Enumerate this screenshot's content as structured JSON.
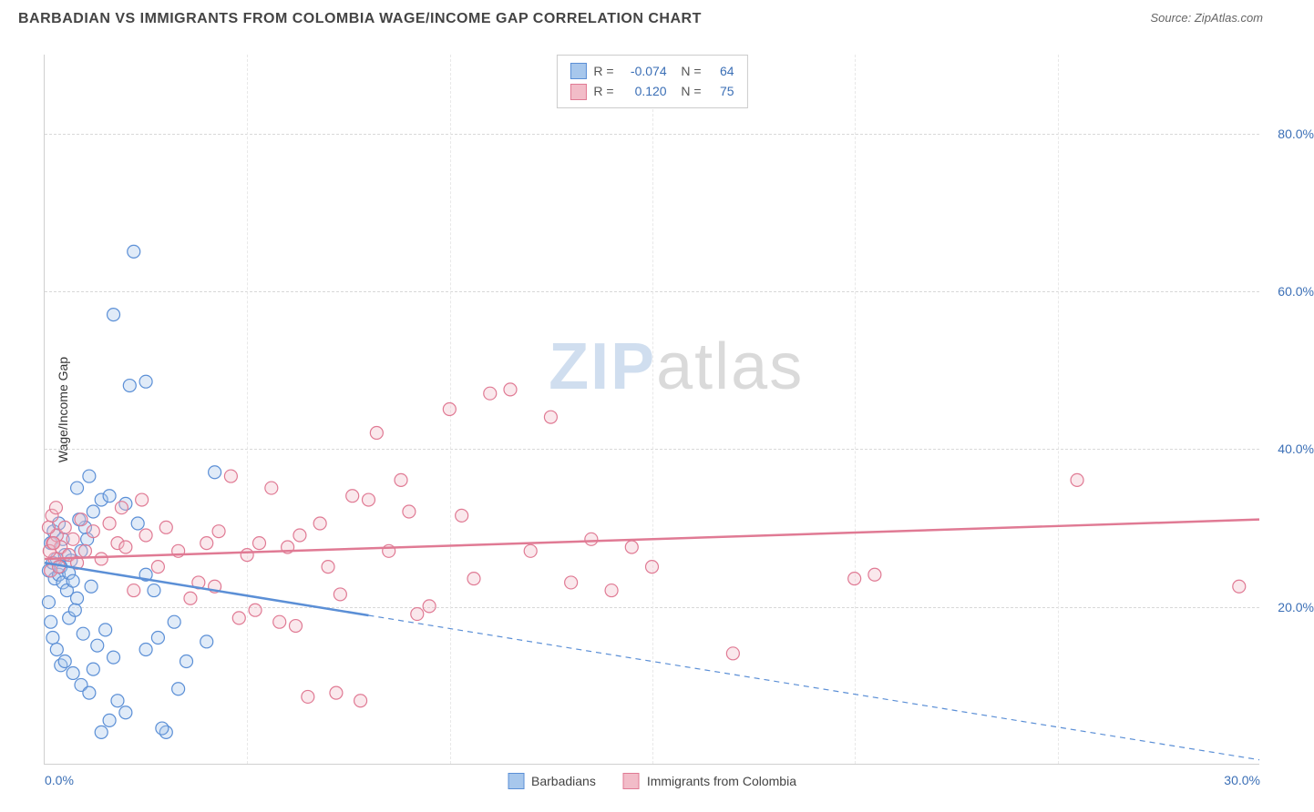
{
  "header": {
    "title": "BARBADIAN VS IMMIGRANTS FROM COLOMBIA WAGE/INCOME GAP CORRELATION CHART",
    "source_label": "Source: ZipAtlas.com"
  },
  "watermark": {
    "left": "ZIP",
    "right": "atlas"
  },
  "chart": {
    "type": "scatter",
    "y_axis_title": "Wage/Income Gap",
    "background_color": "#ffffff",
    "grid_color": "#d8d8d8",
    "axis_color": "#d0d0d0",
    "tick_label_color": "#3b6fb6",
    "xlim": [
      0,
      30
    ],
    "ylim": [
      0,
      90
    ],
    "x_ticks": [
      0,
      5,
      10,
      15,
      20,
      25,
      30
    ],
    "x_tick_labels": [
      "0.0%",
      "",
      "",
      "",
      "",
      "",
      "30.0%"
    ],
    "y_ticks": [
      20,
      40,
      60,
      80
    ],
    "y_tick_labels": [
      "20.0%",
      "40.0%",
      "60.0%",
      "80.0%"
    ],
    "marker_radius": 7,
    "marker_fill_opacity": 0.35,
    "marker_stroke_width": 1.2,
    "trend_line_width": 2.5,
    "series": [
      {
        "id": "barbadians",
        "label": "Barbadians",
        "color_fill": "#a7c7ec",
        "color_stroke": "#5b8fd6",
        "r_stat": "-0.074",
        "n_stat": "64",
        "trend": {
          "x1": 0,
          "y1": 25.5,
          "x2": 30,
          "y2": 0.5,
          "solid_until_x": 8.0
        },
        "points": [
          [
            0.1,
            24.5
          ],
          [
            0.2,
            25.5
          ],
          [
            0.25,
            23.5
          ],
          [
            0.3,
            26.0
          ],
          [
            0.35,
            24.0
          ],
          [
            0.4,
            25.0
          ],
          [
            0.45,
            23.0
          ],
          [
            0.5,
            26.5
          ],
          [
            0.55,
            22.0
          ],
          [
            0.6,
            24.2
          ],
          [
            0.65,
            25.8
          ],
          [
            0.7,
            23.2
          ],
          [
            0.8,
            21.0
          ],
          [
            0.9,
            27.0
          ],
          [
            0.15,
            28.0
          ],
          [
            0.22,
            29.5
          ],
          [
            0.1,
            20.5
          ],
          [
            0.15,
            18.0
          ],
          [
            0.2,
            16.0
          ],
          [
            0.3,
            14.5
          ],
          [
            0.4,
            12.5
          ],
          [
            0.5,
            13.0
          ],
          [
            0.7,
            11.5
          ],
          [
            0.9,
            10.0
          ],
          [
            1.1,
            9.0
          ],
          [
            1.3,
            15.0
          ],
          [
            1.5,
            17.0
          ],
          [
            1.7,
            13.5
          ],
          [
            1.0,
            30.0
          ],
          [
            1.2,
            32.0
          ],
          [
            1.4,
            33.5
          ],
          [
            0.8,
            35.0
          ],
          [
            1.1,
            36.5
          ],
          [
            1.6,
            34.0
          ],
          [
            2.0,
            33.0
          ],
          [
            2.3,
            30.5
          ],
          [
            2.5,
            24.0
          ],
          [
            2.7,
            22.0
          ],
          [
            3.0,
            4.0
          ],
          [
            2.0,
            6.5
          ],
          [
            1.8,
            8.0
          ],
          [
            1.6,
            5.5
          ],
          [
            1.4,
            4.0
          ],
          [
            1.2,
            12.0
          ],
          [
            2.5,
            14.5
          ],
          [
            2.8,
            16.0
          ],
          [
            3.2,
            18.0
          ],
          [
            3.5,
            13.0
          ],
          [
            4.0,
            15.5
          ],
          [
            4.2,
            37.0
          ],
          [
            2.1,
            48.0
          ],
          [
            2.5,
            48.5
          ],
          [
            1.7,
            57.0
          ],
          [
            2.2,
            65.0
          ],
          [
            2.9,
            4.5
          ],
          [
            3.3,
            9.5
          ],
          [
            0.6,
            18.5
          ],
          [
            0.75,
            19.5
          ],
          [
            0.85,
            31.0
          ],
          [
            0.95,
            16.5
          ],
          [
            1.05,
            28.5
          ],
          [
            1.15,
            22.5
          ],
          [
            0.45,
            28.5
          ],
          [
            0.35,
            30.5
          ]
        ]
      },
      {
        "id": "colombia",
        "label": "Immigrants from Colombia",
        "color_fill": "#f2bcc8",
        "color_stroke": "#e07a94",
        "r_stat": "0.120",
        "n_stat": "75",
        "trend": {
          "x1": 0,
          "y1": 26.0,
          "x2": 30,
          "y2": 31.0,
          "solid_until_x": 30
        },
        "points": [
          [
            0.2,
            28.0
          ],
          [
            0.3,
            29.0
          ],
          [
            0.4,
            27.5
          ],
          [
            0.5,
            30.0
          ],
          [
            0.6,
            26.5
          ],
          [
            0.7,
            28.5
          ],
          [
            0.8,
            25.5
          ],
          [
            0.9,
            31.0
          ],
          [
            1.0,
            27.0
          ],
          [
            1.2,
            29.5
          ],
          [
            1.4,
            26.0
          ],
          [
            1.6,
            30.5
          ],
          [
            1.8,
            28.0
          ],
          [
            2.0,
            27.5
          ],
          [
            2.2,
            22.0
          ],
          [
            2.5,
            29.0
          ],
          [
            2.8,
            25.0
          ],
          [
            3.0,
            30.0
          ],
          [
            3.3,
            27.0
          ],
          [
            3.6,
            21.0
          ],
          [
            4.0,
            28.0
          ],
          [
            4.3,
            29.5
          ],
          [
            4.6,
            36.5
          ],
          [
            5.0,
            26.5
          ],
          [
            5.3,
            28.0
          ],
          [
            5.6,
            35.0
          ],
          [
            6.0,
            27.5
          ],
          [
            6.3,
            29.0
          ],
          [
            6.8,
            30.5
          ],
          [
            7.0,
            25.0
          ],
          [
            7.3,
            21.5
          ],
          [
            7.6,
            34.0
          ],
          [
            8.0,
            33.5
          ],
          [
            8.5,
            27.0
          ],
          [
            9.0,
            32.0
          ],
          [
            9.5,
            20.0
          ],
          [
            10.0,
            45.0
          ],
          [
            10.3,
            31.5
          ],
          [
            10.6,
            23.5
          ],
          [
            11.0,
            47.0
          ],
          [
            11.5,
            47.5
          ],
          [
            12.0,
            27.0
          ],
          [
            12.5,
            44.0
          ],
          [
            13.0,
            23.0
          ],
          [
            13.5,
            28.5
          ],
          [
            14.0,
            22.0
          ],
          [
            14.5,
            27.5
          ],
          [
            15.0,
            25.0
          ],
          [
            17.0,
            14.0
          ],
          [
            20.0,
            23.5
          ],
          [
            20.5,
            24.0
          ],
          [
            25.5,
            36.0
          ],
          [
            29.5,
            22.5
          ],
          [
            6.5,
            8.5
          ],
          [
            7.2,
            9.0
          ],
          [
            7.8,
            8.0
          ],
          [
            4.8,
            18.5
          ],
          [
            5.2,
            19.5
          ],
          [
            5.8,
            18.0
          ],
          [
            6.2,
            17.5
          ],
          [
            3.8,
            23.0
          ],
          [
            4.2,
            22.5
          ],
          [
            8.2,
            42.0
          ],
          [
            8.8,
            36.0
          ],
          [
            9.2,
            19.0
          ],
          [
            1.9,
            32.5
          ],
          [
            2.4,
            33.5
          ],
          [
            0.15,
            24.5
          ],
          [
            0.25,
            26.0
          ],
          [
            0.35,
            25.0
          ],
          [
            0.1,
            30.0
          ],
          [
            0.18,
            31.5
          ],
          [
            0.28,
            32.5
          ],
          [
            0.12,
            27.0
          ],
          [
            0.22,
            28.0
          ]
        ]
      }
    ]
  },
  "legend_bottom": {
    "items": [
      {
        "series_ref": 0
      },
      {
        "series_ref": 1
      }
    ]
  }
}
